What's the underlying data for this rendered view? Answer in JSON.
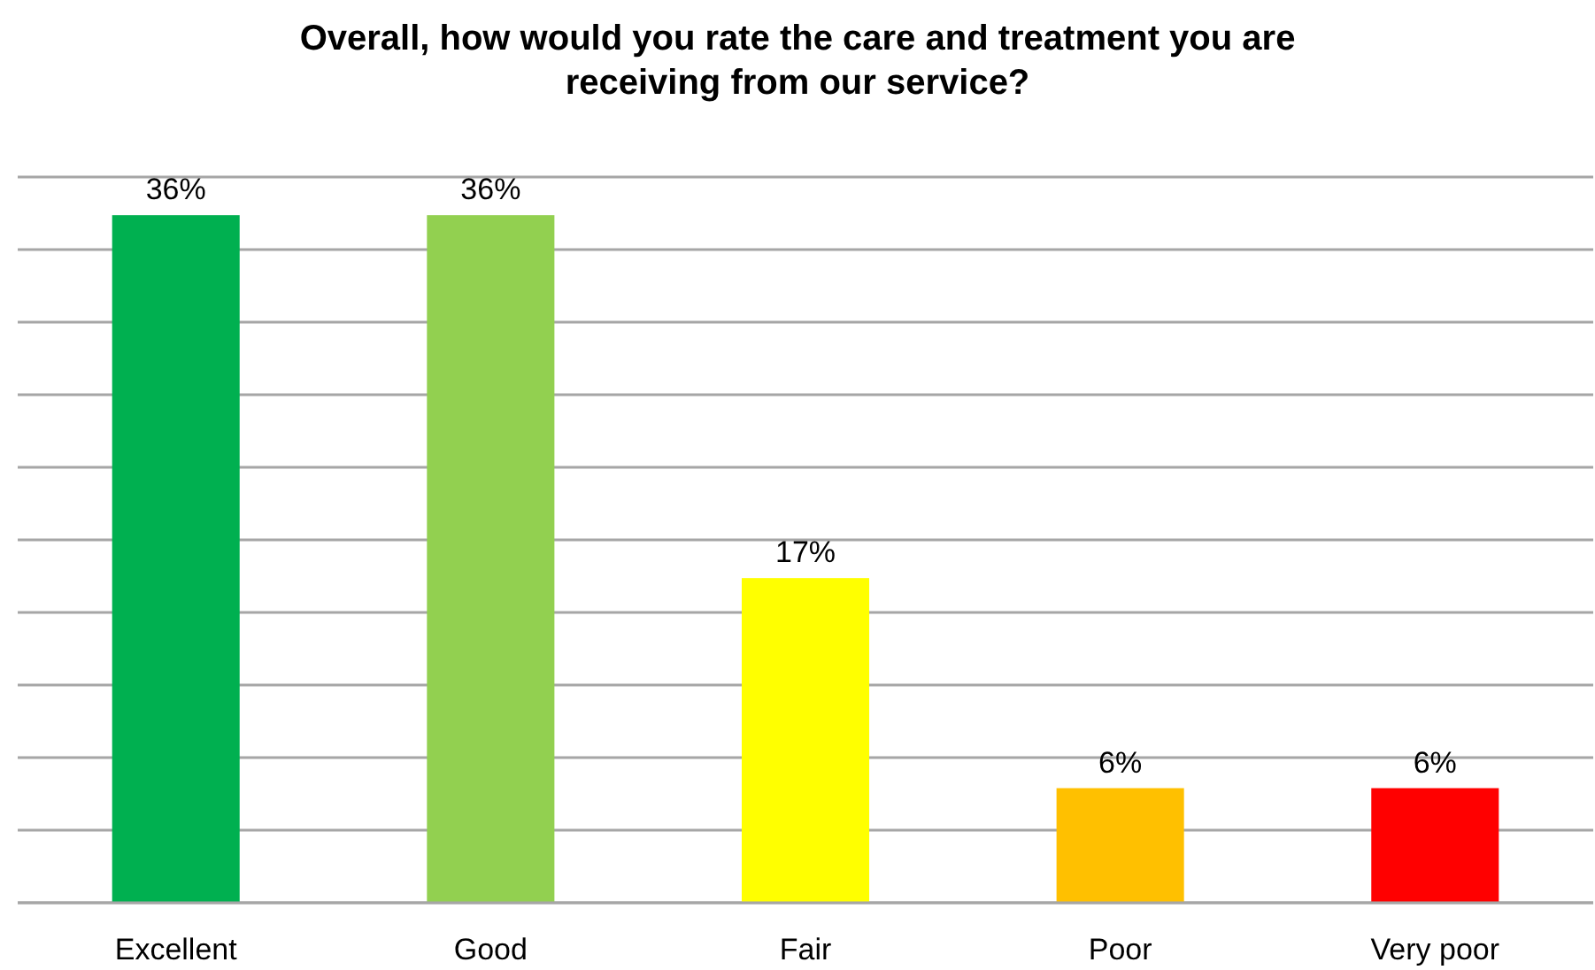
{
  "chart_data": {
    "type": "bar",
    "title": "Overall, how would you rate the care and treatment you are receiving from our service?",
    "categories": [
      "Excellent",
      "Good",
      "Fair",
      "Poor",
      "Very poor"
    ],
    "values": [
      36,
      36,
      17,
      6,
      6
    ],
    "value_labels": [
      "36%",
      "36%",
      "17%",
      "6%",
      "6%"
    ],
    "colors": [
      "#00b050",
      "#92d050",
      "#ffff00",
      "#ffc000",
      "#ff0000"
    ],
    "ylim": [
      0,
      38
    ],
    "yticks": [
      {
        "value": 0,
        "label": null
      },
      {
        "value": 3.8,
        "label": null
      },
      {
        "value": 7.6,
        "label": null
      },
      {
        "value": 11.4,
        "label": null
      },
      {
        "value": 15.2,
        "label": null
      },
      {
        "value": 19,
        "label": null
      },
      {
        "value": 22.8,
        "label": null
      },
      {
        "value": 26.6,
        "label": null
      },
      {
        "value": 30.4,
        "label": null
      },
      {
        "value": 34.2,
        "label": null
      },
      {
        "value": 38,
        "label": null
      }
    ],
    "grid": "y",
    "tick_labels": "x"
  }
}
